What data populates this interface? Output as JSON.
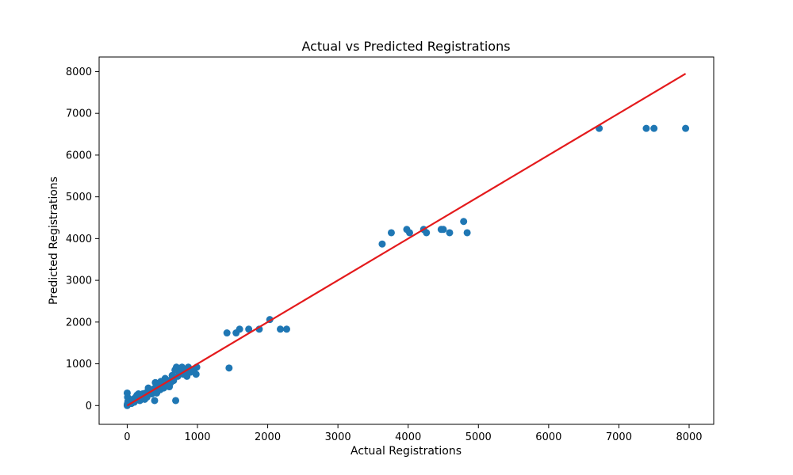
{
  "chart_data": {
    "type": "scatter",
    "title": "Actual vs Predicted Registrations",
    "xlabel": "Actual Registrations",
    "ylabel": "Predicted Registrations",
    "xlim": [
      -400,
      8350
    ],
    "ylim": [
      -450,
      8350
    ],
    "x_ticks": [
      0,
      1000,
      2000,
      3000,
      4000,
      5000,
      6000,
      7000,
      8000
    ],
    "y_ticks": [
      0,
      1000,
      2000,
      3000,
      4000,
      5000,
      6000,
      7000,
      8000
    ],
    "grid": false,
    "colors": {
      "points": "#1f77b4",
      "line": "#e41a1c"
    },
    "fit_line": {
      "x": [
        0,
        7950
      ],
      "y": [
        0,
        7950
      ]
    },
    "points": [
      [
        0,
        0
      ],
      [
        0,
        20
      ],
      [
        5,
        50
      ],
      [
        10,
        100
      ],
      [
        0,
        300
      ],
      [
        5,
        200
      ],
      [
        20,
        150
      ],
      [
        30,
        60
      ],
      [
        50,
        100
      ],
      [
        60,
        50
      ],
      [
        80,
        150
      ],
      [
        100,
        80
      ],
      [
        120,
        200
      ],
      [
        140,
        250
      ],
      [
        150,
        150
      ],
      [
        160,
        280
      ],
      [
        180,
        120
      ],
      [
        200,
        200
      ],
      [
        220,
        280
      ],
      [
        250,
        150
      ],
      [
        260,
        300
      ],
      [
        280,
        200
      ],
      [
        300,
        420
      ],
      [
        320,
        350
      ],
      [
        350,
        280
      ],
      [
        380,
        400
      ],
      [
        390,
        120
      ],
      [
        400,
        550
      ],
      [
        420,
        300
      ],
      [
        450,
        450
      ],
      [
        470,
        380
      ],
      [
        480,
        580
      ],
      [
        500,
        500
      ],
      [
        520,
        420
      ],
      [
        540,
        650
      ],
      [
        560,
        500
      ],
      [
        580,
        600
      ],
      [
        600,
        450
      ],
      [
        620,
        550
      ],
      [
        640,
        720
      ],
      [
        660,
        600
      ],
      [
        680,
        850
      ],
      [
        690,
        120
      ],
      [
        700,
        920
      ],
      [
        720,
        700
      ],
      [
        750,
        800
      ],
      [
        780,
        920
      ],
      [
        800,
        750
      ],
      [
        820,
        850
      ],
      [
        850,
        700
      ],
      [
        870,
        920
      ],
      [
        900,
        800
      ],
      [
        950,
        850
      ],
      [
        980,
        750
      ],
      [
        990,
        920
      ],
      [
        1420,
        1740
      ],
      [
        1450,
        900
      ],
      [
        1550,
        1740
      ],
      [
        1600,
        1830
      ],
      [
        1730,
        1830
      ],
      [
        1880,
        1830
      ],
      [
        2030,
        2060
      ],
      [
        2180,
        1830
      ],
      [
        2270,
        1830
      ],
      [
        3630,
        3870
      ],
      [
        3760,
        4140
      ],
      [
        3980,
        4220
      ],
      [
        4020,
        4140
      ],
      [
        4220,
        4220
      ],
      [
        4260,
        4140
      ],
      [
        4470,
        4220
      ],
      [
        4500,
        4220
      ],
      [
        4590,
        4140
      ],
      [
        4790,
        4410
      ],
      [
        4840,
        4140
      ],
      [
        6720,
        6640
      ],
      [
        7390,
        6640
      ],
      [
        7500,
        6640
      ],
      [
        7950,
        6640
      ]
    ]
  }
}
